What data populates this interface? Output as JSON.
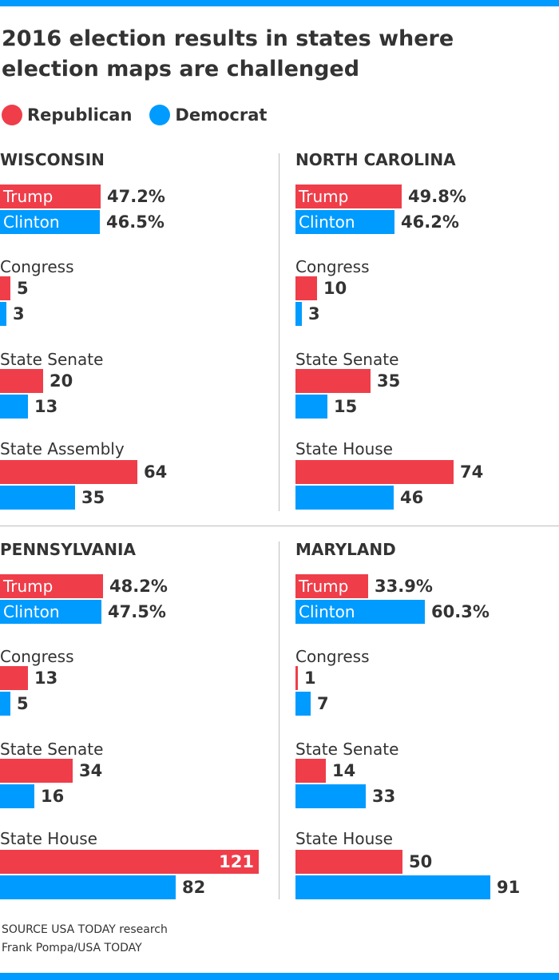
{
  "title": "2016 election results in states where election maps are challenged",
  "legend": [
    {
      "label": "Republican",
      "color": "#ef3e4a"
    },
    {
      "label": "Democrat",
      "color": "#009bff"
    }
  ],
  "colors": {
    "republican": "#ef3e4a",
    "democrat": "#009bff",
    "text": "#333333",
    "divider": "#bdbdbd",
    "accent_bar": "#009bff"
  },
  "chart_data": [
    {
      "type": "bar",
      "title": "WISCONSIN",
      "orientation": "horizontal",
      "president": [
        {
          "name": "Trump",
          "party": "Republican",
          "value": 47.2,
          "label": "47.2%"
        },
        {
          "name": "Clinton",
          "party": "Democrat",
          "value": 46.5,
          "label": "46.5%"
        }
      ],
      "chambers": [
        {
          "label": "Congress",
          "republican": 5,
          "democrat": 3
        },
        {
          "label": "State Senate",
          "republican": 20,
          "democrat": 13
        },
        {
          "label": "State Assembly",
          "republican": 64,
          "democrat": 35
        }
      ]
    },
    {
      "type": "bar",
      "title": "NORTH CAROLINA",
      "orientation": "horizontal",
      "president": [
        {
          "name": "Trump",
          "party": "Republican",
          "value": 49.8,
          "label": "49.8%"
        },
        {
          "name": "Clinton",
          "party": "Democrat",
          "value": 46.2,
          "label": "46.2%"
        }
      ],
      "chambers": [
        {
          "label": "Congress",
          "republican": 10,
          "democrat": 3
        },
        {
          "label": "State Senate",
          "republican": 35,
          "democrat": 15
        },
        {
          "label": "State House",
          "republican": 74,
          "democrat": 46
        }
      ]
    },
    {
      "type": "bar",
      "title": "PENNSYLVANIA",
      "orientation": "horizontal",
      "president": [
        {
          "name": "Trump",
          "party": "Republican",
          "value": 48.2,
          "label": "48.2%"
        },
        {
          "name": "Clinton",
          "party": "Democrat",
          "value": 47.5,
          "label": "47.5%"
        }
      ],
      "chambers": [
        {
          "label": "Congress",
          "republican": 13,
          "democrat": 5
        },
        {
          "label": "State Senate",
          "republican": 34,
          "democrat": 16
        },
        {
          "label": "State House",
          "republican": 121,
          "democrat": 82
        }
      ]
    },
    {
      "type": "bar",
      "title": "MARYLAND",
      "orientation": "horizontal",
      "president": [
        {
          "name": "Trump",
          "party": "Republican",
          "value": 33.9,
          "label": "33.9%"
        },
        {
          "name": "Clinton",
          "party": "Democrat",
          "value": 60.3,
          "label": "60.3%"
        }
      ],
      "chambers": [
        {
          "label": "Congress",
          "republican": 1,
          "democrat": 7
        },
        {
          "label": "State Senate",
          "republican": 14,
          "democrat": 33
        },
        {
          "label": "State House",
          "republican": 50,
          "democrat": 91
        }
      ]
    }
  ],
  "source": {
    "line1": "SOURCE USA TODAY research",
    "line2": "Frank Pompa/USA TODAY"
  }
}
